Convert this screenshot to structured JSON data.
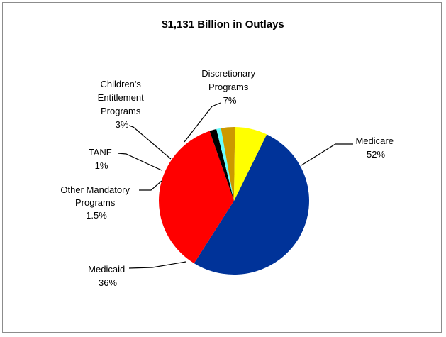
{
  "chart_data": {
    "type": "pie",
    "title": "$1,131 Billion in Outlays",
    "slices": [
      {
        "label": "Medicare",
        "pct_label": "52%",
        "value": 52,
        "color": "#003399"
      },
      {
        "label": "Medicaid",
        "pct_label": "36%",
        "value": 36,
        "color": "#ff0000"
      },
      {
        "label": "Other Mandatory Programs",
        "pct_label": "1.5%",
        "value": 1.5,
        "color": "#000000"
      },
      {
        "label": "TANF",
        "pct_label": "1%",
        "value": 1,
        "color": "#66ffff"
      },
      {
        "label": "Children's Entitlement Programs",
        "pct_label": "3%",
        "value": 3,
        "color": "#cc9900"
      },
      {
        "label": "Discretionary Programs",
        "pct_label": "7%",
        "value": 7,
        "color": "#ffff00"
      }
    ]
  }
}
